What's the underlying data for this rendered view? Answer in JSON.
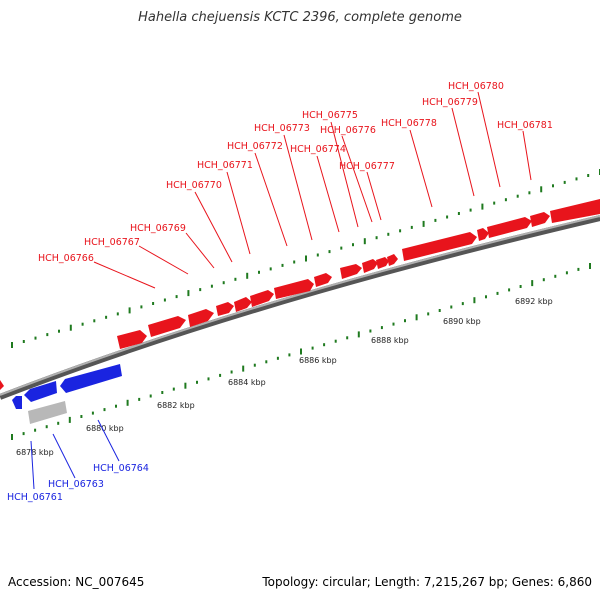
{
  "title": "Hahella chejuensis KCTC 2396, complete genome",
  "footer": {
    "accession": "Accession: NC_007645",
    "summary": "Topology: circular; Length: 7,215,267 bp; Genes: 6,860"
  },
  "colors": {
    "forward": "#e8141c",
    "reverse": "#1a24e0",
    "pseudo": "#b8b8b8",
    "tick": "#1f7a1f",
    "backbone": "#8a8a8a"
  },
  "scale_labels": [
    "6878 kbp",
    "6880 kbp",
    "6882 kbp",
    "6884 kbp",
    "6886 kbp",
    "6888 kbp",
    "6890 kbp",
    "6892 kbp"
  ],
  "forward_labels": [
    "HCH_06766",
    "HCH_06767",
    "HCH_06769",
    "HCH_06770",
    "HCH_06771",
    "HCH_06772",
    "HCH_06773",
    "HCH_06774",
    "HCH_06775",
    "HCH_06776",
    "HCH_06777",
    "HCH_06778",
    "HCH_06779",
    "HCH_06780",
    "HCH_06781"
  ],
  "reverse_labels": [
    "HCH_06761",
    "HCH_06763",
    "HCH_06764"
  ]
}
